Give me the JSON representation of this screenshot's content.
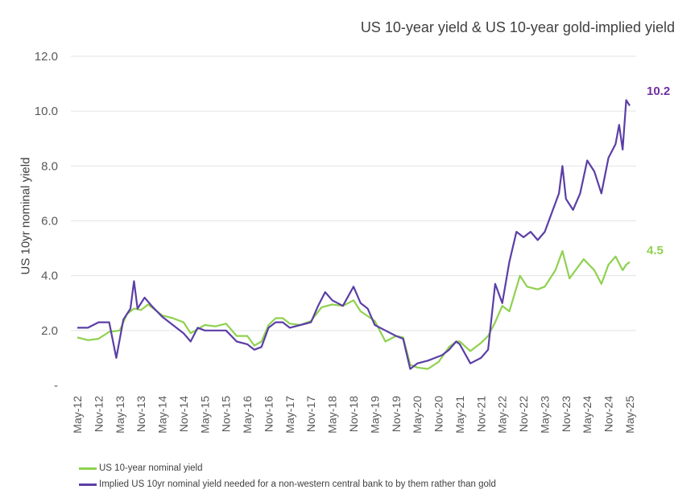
{
  "chart_data": {
    "type": "line",
    "title": "US 10-year yield & US 10-year gold-implied yield",
    "ylabel": "US 10yr nominal yield",
    "xlabel": "",
    "ylim": [
      0,
      12
    ],
    "yticks": [
      {
        "value": 0,
        "label": "-"
      },
      {
        "value": 2,
        "label": "2.0"
      },
      {
        "value": 4,
        "label": "4.0"
      },
      {
        "value": 6,
        "label": "6.0"
      },
      {
        "value": 8,
        "label": "8.0"
      },
      {
        "value": 10,
        "label": "10.0"
      },
      {
        "value": 12,
        "label": "12.0"
      }
    ],
    "x_tick_labels": [
      "May-12",
      "Nov-12",
      "May-13",
      "Nov-13",
      "May-14",
      "Nov-14",
      "May-15",
      "Nov-15",
      "May-16",
      "Nov-16",
      "May-17",
      "Nov-17",
      "May-18",
      "Nov-18",
      "May-19",
      "Nov-19",
      "May-20",
      "Nov-20",
      "May-21",
      "Nov-21",
      "May-22",
      "Nov-22",
      "May-23",
      "Nov-23",
      "May-24",
      "Nov-24",
      "May-25"
    ],
    "grid": "horizontal",
    "legend_position": "bottom-left",
    "colors": {
      "nominal": "#8fd14f",
      "implied": "#5b3ea6",
      "nominal_label": "#8fd14f",
      "implied_label": "#7030a0"
    },
    "end_labels": {
      "implied": "10.2",
      "nominal": "4.5"
    },
    "series": [
      {
        "name": "US 10-year nominal yield",
        "key": "nominal",
        "points": [
          [
            "May-12",
            1.75
          ],
          [
            "Aug-12",
            1.65
          ],
          [
            "Nov-12",
            1.7
          ],
          [
            "Feb-13",
            1.95
          ],
          [
            "May-13",
            2.0
          ],
          [
            "Jul-13",
            2.6
          ],
          [
            "Sep-13",
            2.8
          ],
          [
            "Nov-13",
            2.75
          ],
          [
            "Jan-14",
            2.95
          ],
          [
            "Mar-14",
            2.75
          ],
          [
            "May-14",
            2.55
          ],
          [
            "Aug-14",
            2.45
          ],
          [
            "Nov-14",
            2.3
          ],
          [
            "Jan-15",
            1.9
          ],
          [
            "Mar-15",
            2.05
          ],
          [
            "May-15",
            2.2
          ],
          [
            "Aug-15",
            2.15
          ],
          [
            "Nov-15",
            2.25
          ],
          [
            "Feb-16",
            1.8
          ],
          [
            "May-16",
            1.8
          ],
          [
            "Jul-16",
            1.45
          ],
          [
            "Sep-16",
            1.6
          ],
          [
            "Nov-16",
            2.2
          ],
          [
            "Jan-17",
            2.45
          ],
          [
            "Mar-17",
            2.45
          ],
          [
            "May-17",
            2.25
          ],
          [
            "Aug-17",
            2.2
          ],
          [
            "Nov-17",
            2.35
          ],
          [
            "Feb-18",
            2.85
          ],
          [
            "May-18",
            2.95
          ],
          [
            "Aug-18",
            2.9
          ],
          [
            "Nov-18",
            3.1
          ],
          [
            "Jan-19",
            2.7
          ],
          [
            "May-19",
            2.35
          ],
          [
            "Aug-19",
            1.6
          ],
          [
            "Nov-19",
            1.8
          ],
          [
            "Jan-20",
            1.75
          ],
          [
            "Mar-20",
            0.75
          ],
          [
            "May-20",
            0.65
          ],
          [
            "Aug-20",
            0.6
          ],
          [
            "Nov-20",
            0.85
          ],
          [
            "Feb-21",
            1.4
          ],
          [
            "Apr-21",
            1.6
          ],
          [
            "May-21",
            1.6
          ],
          [
            "Aug-21",
            1.25
          ],
          [
            "Nov-21",
            1.55
          ],
          [
            "Jan-22",
            1.8
          ],
          [
            "Mar-22",
            2.3
          ],
          [
            "May-22",
            2.9
          ],
          [
            "Jul-22",
            2.7
          ],
          [
            "Oct-22",
            4.0
          ],
          [
            "Dec-22",
            3.6
          ],
          [
            "Mar-23",
            3.5
          ],
          [
            "May-23",
            3.6
          ],
          [
            "Aug-23",
            4.2
          ],
          [
            "Oct-23",
            4.9
          ],
          [
            "Dec-23",
            3.9
          ],
          [
            "Feb-24",
            4.25
          ],
          [
            "Apr-24",
            4.6
          ],
          [
            "Jul-24",
            4.2
          ],
          [
            "Sep-24",
            3.7
          ],
          [
            "Nov-24",
            4.4
          ],
          [
            "Jan-25",
            4.7
          ],
          [
            "Mar-25",
            4.2
          ],
          [
            "Apr-25",
            4.4
          ],
          [
            "May-25",
            4.5
          ]
        ]
      },
      {
        "name": "Implied US 10yr nominal yield needed for a non-western central bank to by them rather than gold",
        "key": "implied",
        "points": [
          [
            "May-12",
            2.1
          ],
          [
            "Aug-12",
            2.1
          ],
          [
            "Nov-12",
            2.3
          ],
          [
            "Feb-13",
            2.3
          ],
          [
            "Apr-13",
            1.0
          ],
          [
            "Jun-13",
            2.4
          ],
          [
            "Aug-13",
            2.8
          ],
          [
            "Sep-13",
            3.8
          ],
          [
            "Oct-13",
            2.8
          ],
          [
            "Dec-13",
            3.2
          ],
          [
            "Feb-14",
            2.9
          ],
          [
            "May-14",
            2.5
          ],
          [
            "Aug-14",
            2.2
          ],
          [
            "Nov-14",
            1.9
          ],
          [
            "Jan-15",
            1.6
          ],
          [
            "Mar-15",
            2.1
          ],
          [
            "May-15",
            2.0
          ],
          [
            "Aug-15",
            2.0
          ],
          [
            "Nov-15",
            2.0
          ],
          [
            "Feb-16",
            1.6
          ],
          [
            "May-16",
            1.5
          ],
          [
            "Jul-16",
            1.3
          ],
          [
            "Sep-16",
            1.4
          ],
          [
            "Nov-16",
            2.1
          ],
          [
            "Jan-17",
            2.3
          ],
          [
            "Mar-17",
            2.3
          ],
          [
            "May-17",
            2.1
          ],
          [
            "Aug-17",
            2.2
          ],
          [
            "Nov-17",
            2.3
          ],
          [
            "Jan-18",
            2.9
          ],
          [
            "Mar-18",
            3.4
          ],
          [
            "May-18",
            3.1
          ],
          [
            "Aug-18",
            2.9
          ],
          [
            "Nov-18",
            3.6
          ],
          [
            "Jan-19",
            3.0
          ],
          [
            "Mar-19",
            2.8
          ],
          [
            "May-19",
            2.2
          ],
          [
            "Aug-19",
            2.0
          ],
          [
            "Nov-19",
            1.8
          ],
          [
            "Jan-20",
            1.7
          ],
          [
            "Mar-20",
            0.6
          ],
          [
            "May-20",
            0.8
          ],
          [
            "Aug-20",
            0.9
          ],
          [
            "Oct-20",
            1.0
          ],
          [
            "Dec-20",
            1.1
          ],
          [
            "Feb-21",
            1.3
          ],
          [
            "Apr-21",
            1.6
          ],
          [
            "May-21",
            1.5
          ],
          [
            "Aug-21",
            0.8
          ],
          [
            "Nov-21",
            1.0
          ],
          [
            "Jan-22",
            1.3
          ],
          [
            "Mar-22",
            3.7
          ],
          [
            "May-22",
            3.0
          ],
          [
            "Jul-22",
            4.5
          ],
          [
            "Sep-22",
            5.6
          ],
          [
            "Nov-22",
            5.4
          ],
          [
            "Jan-23",
            5.6
          ],
          [
            "Mar-23",
            5.3
          ],
          [
            "May-23",
            5.6
          ],
          [
            "Jul-23",
            6.3
          ],
          [
            "Sep-23",
            7.0
          ],
          [
            "Oct-23",
            8.0
          ],
          [
            "Nov-23",
            6.8
          ],
          [
            "Jan-24",
            6.4
          ],
          [
            "Mar-24",
            7.0
          ],
          [
            "May-24",
            8.2
          ],
          [
            "Jul-24",
            7.8
          ],
          [
            "Sep-24",
            7.0
          ],
          [
            "Nov-24",
            8.3
          ],
          [
            "Jan-25",
            8.8
          ],
          [
            "Feb-25",
            9.5
          ],
          [
            "Mar-25",
            8.6
          ],
          [
            "Apr-25",
            10.4
          ],
          [
            "May-25",
            10.2
          ]
        ]
      }
    ]
  }
}
